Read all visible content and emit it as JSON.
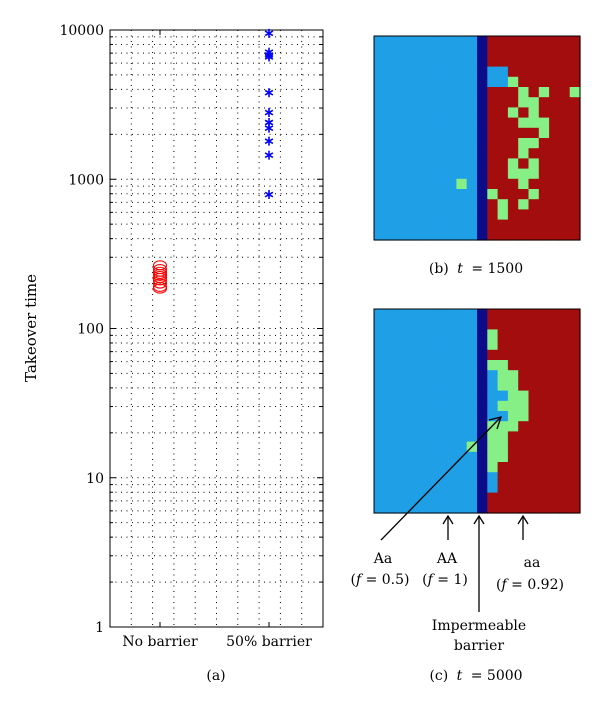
{
  "colors": {
    "AA": "#1e9fe6",
    "aa": "#a30d0d",
    "Aa": "#86ef86",
    "barrier": "#0c0c8a",
    "no_barrier_marker": "#ff0000",
    "barrier_marker": "#0000ff"
  },
  "chart_data": [
    {
      "type": "scatter",
      "panel_label": "(a)",
      "ylabel": "Takeover time",
      "yscale": "log",
      "ylim": [
        1,
        10000
      ],
      "ytick_labels": [
        "1",
        "10",
        "100",
        "1000",
        "10000"
      ],
      "grid": true,
      "categories": [
        "No barrier",
        "50% barrier"
      ],
      "series": [
        {
          "category": "No barrier",
          "marker": "circle",
          "color": "#ff0000",
          "values": [
            265,
            250,
            240,
            232,
            225,
            218,
            210,
            200,
            190,
            185
          ]
        },
        {
          "category": "50% barrier",
          "marker": "asterisk",
          "color": "#0000ff",
          "values": [
            9500,
            7100,
            6800,
            6600,
            3800,
            2800,
            2400,
            2200,
            1800,
            1450,
            790
          ]
        }
      ]
    },
    {
      "type": "heatmap",
      "panel_label": "(b)",
      "caption_prefix": "(b)",
      "caption_var": "t",
      "caption_value": "= 1500",
      "cols": 20,
      "rows": 20,
      "barrier_col": 10,
      "aa_start": [
        11,
        11,
        11,
        13,
        14,
        11,
        11,
        11,
        11,
        11,
        11,
        11,
        11,
        11,
        11,
        11,
        11,
        11,
        11,
        11
      ],
      "green_cells": [
        [
          13,
          4
        ],
        [
          14,
          5
        ],
        [
          14,
          6
        ],
        [
          13,
          7
        ],
        [
          15,
          7
        ],
        [
          16,
          5
        ],
        [
          19,
          5
        ],
        [
          15,
          6
        ],
        [
          14,
          8
        ],
        [
          15,
          8
        ],
        [
          16,
          8
        ],
        [
          16,
          9
        ],
        [
          14,
          10
        ],
        [
          15,
          10
        ],
        [
          14,
          11
        ],
        [
          13,
          12
        ],
        [
          15,
          12
        ],
        [
          13,
          13
        ],
        [
          14,
          13
        ],
        [
          15,
          13
        ],
        [
          14,
          14
        ],
        [
          8,
          14
        ],
        [
          11,
          15
        ],
        [
          15,
          15
        ],
        [
          12,
          16
        ],
        [
          14,
          16
        ],
        [
          12,
          17
        ]
      ]
    },
    {
      "type": "heatmap",
      "panel_label": "(c)",
      "caption_prefix": "(c)",
      "caption_var": "t",
      "caption_value": "= 5000",
      "cols": 20,
      "rows": 20,
      "barrier_col": 10,
      "aa_start": [
        11,
        11,
        11,
        12,
        11,
        12,
        12,
        13,
        14,
        14,
        14,
        14,
        13,
        13,
        13,
        12,
        12,
        12,
        11,
        11
      ],
      "green_cells": [
        [
          11,
          2
        ],
        [
          11,
          3
        ],
        [
          11,
          5
        ],
        [
          12,
          5
        ],
        [
          12,
          6
        ],
        [
          13,
          6
        ],
        [
          13,
          7
        ],
        [
          12,
          7
        ],
        [
          13,
          8
        ],
        [
          14,
          8
        ],
        [
          12,
          9
        ],
        [
          13,
          9
        ],
        [
          14,
          9
        ],
        [
          13,
          10
        ],
        [
          14,
          10
        ],
        [
          11,
          11
        ],
        [
          12,
          11
        ],
        [
          13,
          11
        ],
        [
          11,
          12
        ],
        [
          12,
          12
        ],
        [
          11,
          13
        ],
        [
          12,
          13
        ],
        [
          11,
          14
        ],
        [
          12,
          14
        ],
        [
          11,
          15
        ],
        [
          9,
          13
        ],
        [
          10,
          13
        ]
      ],
      "labels": {
        "Aa": "Aa",
        "Aa_f": "(f = 0.5)",
        "AA": "AA",
        "AA_f": "(f = 1)",
        "aa": "aa",
        "aa_f": "(f = 0.92)",
        "barrier_line1": "Impermeable",
        "barrier_line2": "barrier"
      }
    }
  ]
}
